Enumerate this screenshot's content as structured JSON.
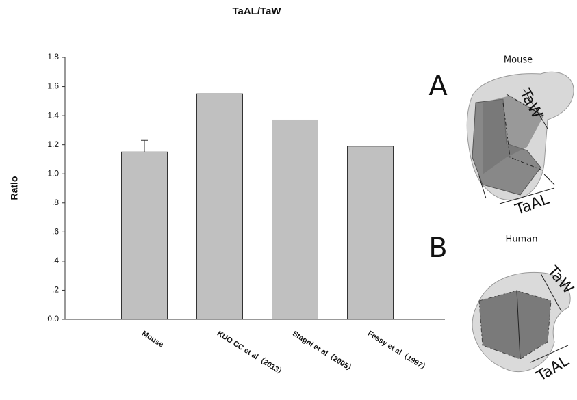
{
  "chart_data": {
    "type": "bar",
    "title": "TaAL/TaW",
    "y_label": "Ratio",
    "categories": [
      "Mouse",
      "KUO CC et al（2013）",
      "Stagni et al（2005）",
      "Fessy et al（1997）"
    ],
    "values": [
      1.15,
      1.55,
      1.37,
      1.19
    ],
    "errors": [
      0.08,
      null,
      null,
      null
    ],
    "color": "#c0c0c0",
    "ylim": [
      0,
      1.8
    ],
    "yticks": [
      {
        "value": 0,
        "label": "0.0"
      },
      {
        "value": 0.2,
        "label": ".2"
      },
      {
        "value": 0.4,
        "label": ".4"
      },
      {
        "value": 0.6,
        "label": ".6"
      },
      {
        "value": 0.8,
        "label": ".8"
      },
      {
        "value": 1,
        "label": "1.0"
      },
      1.2,
      1.4,
      1.6,
      1.8
    ]
  },
  "panels": [
    {
      "letter": "A",
      "title": "Mouse",
      "width_label": "TaW",
      "length_label": "TaAL"
    },
    {
      "letter": "B",
      "title": "Human",
      "width_label": "TaW",
      "length_label": "TaAL"
    }
  ]
}
